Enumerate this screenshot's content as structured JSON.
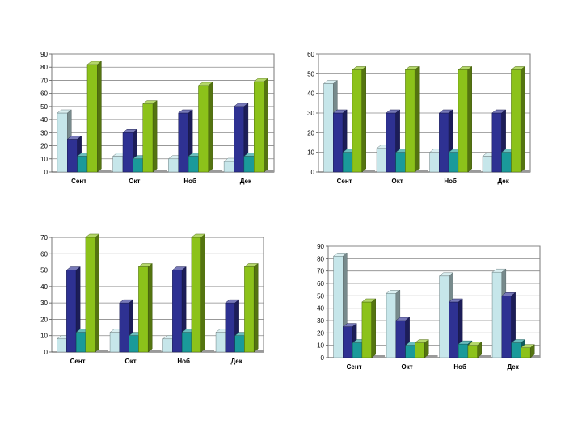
{
  "chart_data": [
    {
      "type": "bar",
      "categories": [
        "Сент",
        "Окт",
        "Ноб",
        "Дек"
      ],
      "ylim": [
        0,
        90
      ],
      "yticks": [
        0,
        10,
        20,
        30,
        40,
        50,
        60,
        70,
        80,
        90
      ],
      "grid": true,
      "series": [
        {
          "color": "#c6e6ea",
          "values": [
            45,
            12,
            10,
            8
          ]
        },
        {
          "color": "#2e3192",
          "values": [
            25,
            30,
            45,
            50
          ]
        },
        {
          "color": "#1a9a9a",
          "values": [
            12,
            10,
            12,
            12
          ]
        },
        {
          "color": "#8cc21a",
          "values": [
            82,
            52,
            66,
            69
          ]
        }
      ]
    },
    {
      "type": "bar",
      "categories": [
        "Сент",
        "Окт",
        "Ноб",
        "Дек"
      ],
      "ylim": [
        0,
        60
      ],
      "yticks": [
        0,
        10,
        20,
        30,
        40,
        50,
        60
      ],
      "grid": true,
      "series": [
        {
          "color": "#c6e6ea",
          "values": [
            45,
            12,
            10,
            8
          ]
        },
        {
          "color": "#2e3192",
          "values": [
            30,
            30,
            30,
            30
          ]
        },
        {
          "color": "#1a9a9a",
          "values": [
            10,
            10,
            10,
            10
          ]
        },
        {
          "color": "#8cc21a",
          "values": [
            52,
            52,
            52,
            52
          ]
        }
      ]
    },
    {
      "type": "bar",
      "categories": [
        "Сент",
        "Окт",
        "Ноб",
        "Дек"
      ],
      "ylim": [
        0,
        70
      ],
      "yticks": [
        0,
        10,
        20,
        30,
        40,
        50,
        60,
        70
      ],
      "grid": true,
      "series": [
        {
          "color": "#c6e6ea",
          "values": [
            8,
            12,
            8,
            12
          ]
        },
        {
          "color": "#2e3192",
          "values": [
            50,
            30,
            50,
            30
          ]
        },
        {
          "color": "#1a9a9a",
          "values": [
            12,
            10,
            12,
            10
          ]
        },
        {
          "color": "#8cc21a",
          "values": [
            70,
            52,
            70,
            52
          ]
        }
      ]
    },
    {
      "type": "bar",
      "categories": [
        "Сент",
        "Окт",
        "Ноб",
        "Дек"
      ],
      "ylim": [
        0,
        90
      ],
      "yticks": [
        0,
        10,
        20,
        30,
        40,
        50,
        60,
        70,
        80,
        90
      ],
      "grid": true,
      "series": [
        {
          "color": "#c6e6ea",
          "values": [
            82,
            52,
            66,
            69
          ]
        },
        {
          "color": "#2e3192",
          "values": [
            25,
            30,
            45,
            50
          ]
        },
        {
          "color": "#1a9a9a",
          "values": [
            12,
            10,
            11,
            12
          ]
        },
        {
          "color": "#8cc21a",
          "values": [
            45,
            12,
            10,
            8
          ]
        }
      ]
    }
  ]
}
